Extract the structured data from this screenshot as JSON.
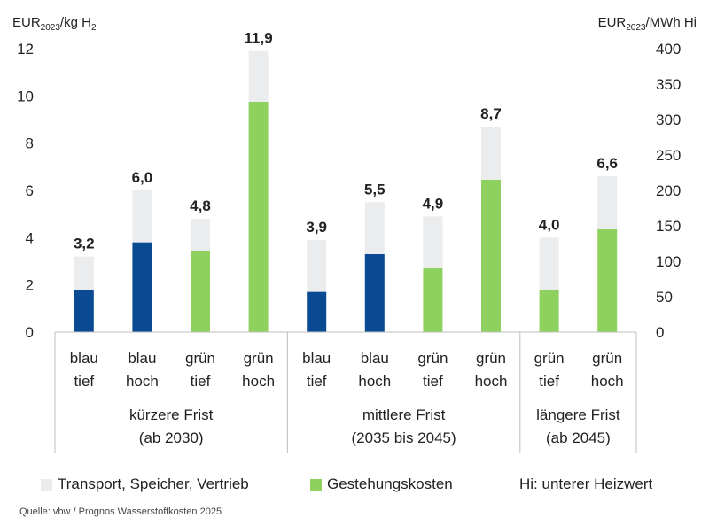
{
  "chart_data": {
    "type": "bar",
    "stacked": true,
    "y_left_label": "EUR",
    "y_left_label_sub": "2023",
    "y_left_label_suffix": "/kg H",
    "y_left_label_suffix_sub": "2",
    "y_right_label": "EUR",
    "y_right_label_sub": "2023",
    "y_right_label_suffix": "/MWh Hi",
    "ylim_left": [
      0,
      12
    ],
    "ylim_right": [
      0,
      400
    ],
    "yticks_left": [
      "0",
      "2",
      "4",
      "6",
      "8",
      "10",
      "12"
    ],
    "yticks_right": [
      "0",
      "50",
      "100",
      "150",
      "200",
      "250",
      "300",
      "350",
      "400"
    ],
    "categories": [
      {
        "line1": "blau",
        "line2": "tief"
      },
      {
        "line1": "blau",
        "line2": "hoch"
      },
      {
        "line1": "grün",
        "line2": "tief"
      },
      {
        "line1": "grün",
        "line2": "hoch"
      },
      {
        "line1": "blau",
        "line2": "tief"
      },
      {
        "line1": "blau",
        "line2": "hoch"
      },
      {
        "line1": "grün",
        "line2": "tief"
      },
      {
        "line1": "grün",
        "line2": "hoch"
      },
      {
        "line1": "grün",
        "line2": "tief"
      },
      {
        "line1": "grün",
        "line2": "hoch"
      }
    ],
    "groups": [
      {
        "line1": "kürzere Frist",
        "line2": "(ab 2030)",
        "count": 4
      },
      {
        "line1": "mittlere Frist",
        "line2": "(2035 bis 2045)",
        "count": 4
      },
      {
        "line1": "längere Frist",
        "line2": "(ab 2045)",
        "count": 2
      }
    ],
    "series": [
      {
        "name": "Gestehungskosten",
        "values": [
          1.8,
          3.8,
          3.45,
          9.75,
          1.7,
          3.3,
          2.7,
          6.45,
          1.8,
          4.35
        ]
      },
      {
        "name": "Transport, Speicher, Vertrieb",
        "values": [
          1.4,
          2.2,
          1.35,
          2.15,
          2.2,
          2.2,
          2.2,
          2.25,
          2.2,
          2.25
        ]
      }
    ],
    "totals": [
      "3,2",
      "6,0",
      "4,8",
      "11,9",
      "3,9",
      "5,5",
      "4,9",
      "8,7",
      "4,0",
      "6,6"
    ],
    "bar_colors": [
      "#0a4a92",
      "#0a4a92",
      "#8fd15e",
      "#8fd15e",
      "#0a4a92",
      "#0a4a92",
      "#8fd15e",
      "#8fd15e",
      "#8fd15e",
      "#8fd15e"
    ],
    "overlay_color": "#ebeced"
  },
  "legend": {
    "transport_label": "Transport, Speicher, Vertrieb",
    "transport_color": "#ebeced",
    "gestehung_label": "Gestehungskosten",
    "gestehung_color": "#8fd15e",
    "heizwert_note": "Hi: unterer Heizwert"
  },
  "source": "Quelle: vbw / Prognos Wasserstoffkosten 2025"
}
